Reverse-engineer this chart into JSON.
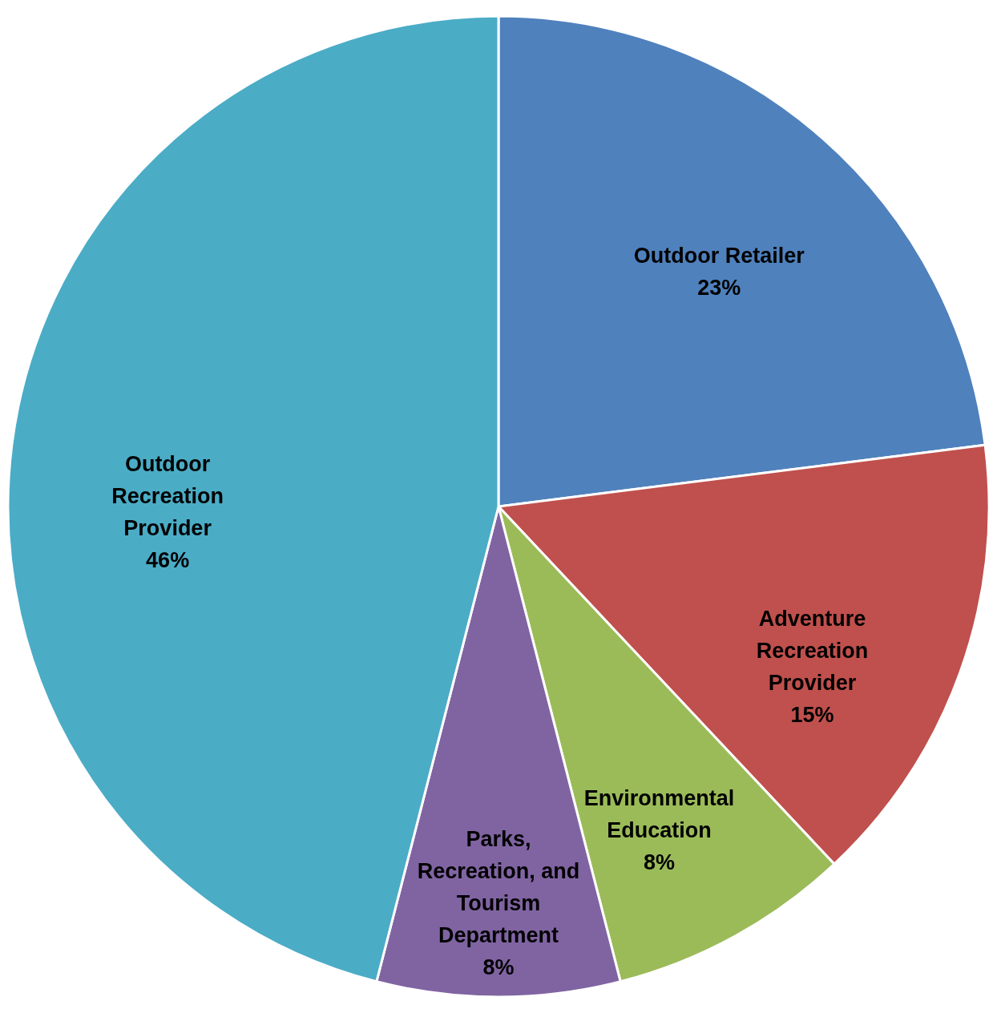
{
  "chart_data": {
    "type": "pie",
    "categories": [
      "Outdoor Retailer",
      "Adventure Recreation Provider",
      "Environmental Education",
      "Parks, Recreation, and Tourism Department",
      "Outdoor Recreation Provider"
    ],
    "values": [
      23,
      15,
      8,
      8,
      46
    ],
    "colors": [
      "#4f81bd",
      "#c0504d",
      "#9bbb59",
      "#8064a2",
      "#4bacc6"
    ],
    "value_labels": [
      "23%",
      "15%",
      "8%",
      "8%",
      "46%"
    ],
    "legend": false
  }
}
